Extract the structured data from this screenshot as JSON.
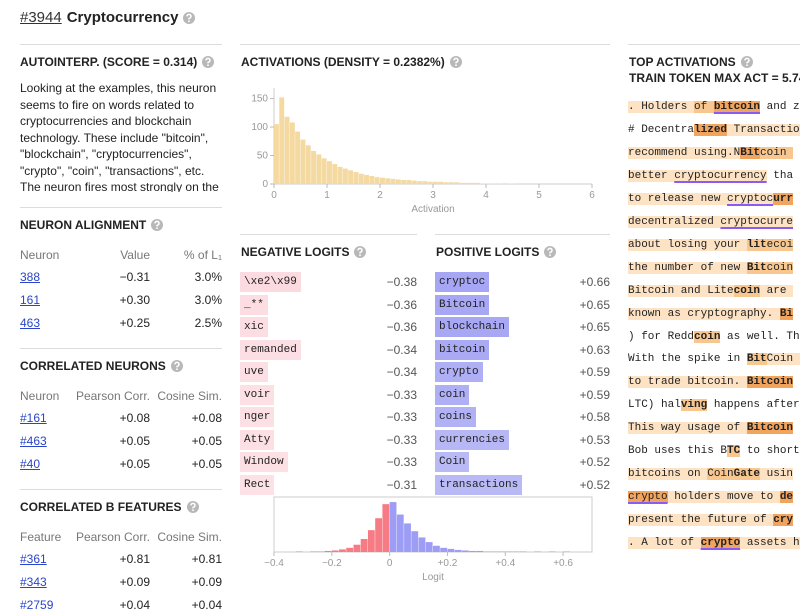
{
  "header": {
    "id": "#3944",
    "title": "Cryptocurrency"
  },
  "autointerp": {
    "title": "AUTOINTERP. (SCORE = 0.314)",
    "text": "Looking at the examples, this neuron seems to fire on words related to cryptocurrencies and blockchain technology. These include \"bitcoin\", \"blockchain\", \"cryptocurrencies\", \"crypto\", \"coin\", \"transactions\", etc. The neuron fires most strongly on the"
  },
  "neuron_alignment": {
    "title": "NEURON ALIGNMENT",
    "columns": [
      "Neuron",
      "Value",
      "% of L₁"
    ],
    "rows": [
      [
        "388",
        "−0.31",
        "3.0%"
      ],
      [
        "161",
        "+0.30",
        "3.0%"
      ],
      [
        "463",
        "+0.25",
        "2.5%"
      ]
    ]
  },
  "correlated_neurons": {
    "title": "CORRELATED NEURONS",
    "columns": [
      "Neuron",
      "Pearson Corr.",
      "Cosine Sim."
    ],
    "rows": [
      [
        "#161",
        "+0.08",
        "+0.08"
      ],
      [
        "#463",
        "+0.05",
        "+0.05"
      ],
      [
        "#40",
        "+0.05",
        "+0.05"
      ]
    ]
  },
  "correlated_b_features": {
    "title": "CORRELATED B FEATURES",
    "columns": [
      "Feature",
      "Pearson Corr.",
      "Cosine Sim."
    ],
    "rows": [
      [
        "#361",
        "+0.81",
        "+0.81"
      ],
      [
        "#343",
        "+0.09",
        "+0.09"
      ],
      [
        "#2759",
        "+0.04",
        "+0.04"
      ]
    ]
  },
  "activations": {
    "title": "ACTIVATIONS (DENSITY = 0.2382%)"
  },
  "negative_logits": {
    "title": "NEGATIVE LOGITS",
    "color": "#f2788c",
    "tokens": [
      "\\xe2\\x99",
      "_**",
      "xic",
      " remanded",
      "uve",
      " voir",
      "nger",
      " Atty",
      "Window",
      "Rect"
    ],
    "values": [
      -0.38,
      -0.36,
      -0.36,
      -0.34,
      -0.34,
      -0.33,
      -0.33,
      -0.33,
      -0.33,
      -0.31
    ],
    "value_labels": [
      "−0.38",
      "−0.36",
      "−0.36",
      "−0.34",
      "−0.34",
      "−0.33",
      "−0.33",
      "−0.33",
      "−0.33",
      "−0.31"
    ]
  },
  "positive_logits": {
    "title": "POSITIVE LOGITS",
    "color": "#7878ee",
    "tokens": [
      " cryptoc",
      " Bitcoin",
      " blockchain",
      " bitcoin",
      " crypto",
      "coin",
      "coins",
      " currencies",
      " Coin",
      " transactions"
    ],
    "values": [
      0.66,
      0.65,
      0.65,
      0.63,
      0.59,
      0.59,
      0.58,
      0.53,
      0.52,
      0.52
    ],
    "value_labels": [
      "+0.66",
      "+0.65",
      "+0.65",
      "+0.63",
      "+0.59",
      "+0.59",
      "+0.58",
      "+0.53",
      "+0.52",
      "+0.52"
    ]
  },
  "top_activations": {
    "title": "TOP ACTIVATIONS",
    "subtitle": "TRAIN TOKEN MAX ACT = 5.74",
    "highlight_colors": [
      "#ffffff",
      "#fde3c4",
      "#f8c790",
      "#f1a45e"
    ],
    "underline_color": "#8a5cf5",
    "lines": [
      [
        {
          "text": ". Holders ",
          "level": 1
        },
        {
          "text": "of ",
          "level": 2
        },
        {
          "text": "bitcoin",
          "level": 3,
          "bold": true,
          "underline": true
        },
        {
          "text": " and z",
          "level": 0
        }
      ],
      [
        {
          "text": "# Decentra",
          "level": 0
        },
        {
          "text": "lized",
          "level": 3,
          "bold": true
        },
        {
          "text": " Transactio",
          "level": 1
        }
      ],
      [
        {
          "text": "recommend using.N",
          "level": 1
        },
        {
          "text": "Bit",
          "level": 3,
          "bold": true
        },
        {
          "text": "coin ",
          "level": 2
        }
      ],
      [
        {
          "text": "better ",
          "level": 1
        },
        {
          "text": "cryptocurrency",
          "level": 1,
          "underline": true
        },
        {
          "text": " tha",
          "level": 0
        }
      ],
      [
        {
          "text": "to release new ",
          "level": 1
        },
        {
          "text": "cryptoc",
          "level": 1,
          "underline": true
        },
        {
          "text": "urr",
          "level": 3,
          "bold": true
        }
      ],
      [
        {
          "text": "decentralized ",
          "level": 1
        },
        {
          "text": "cryptocurre",
          "level": 1,
          "underline": true
        }
      ],
      [
        {
          "text": "about losing your ",
          "level": 1
        },
        {
          "text": "lit",
          "level": 2,
          "bold": true
        },
        {
          "text": "ecoi",
          "level": 2
        }
      ],
      [
        {
          "text": "the number of new ",
          "level": 1
        },
        {
          "text": "Bit",
          "level": 2,
          "bold": true
        },
        {
          "text": "coin",
          "level": 2
        }
      ],
      [
        {
          "text": "Bitcoin and Lite",
          "level": 1
        },
        {
          "text": "coin",
          "level": 2,
          "bold": true
        },
        {
          "text": " are ",
          "level": 1
        }
      ],
      [
        {
          "text": "known as cryptography. ",
          "level": 1
        },
        {
          "text": "Bi",
          "level": 3,
          "bold": true
        }
      ],
      [
        {
          "text": ") for Redd",
          "level": 0
        },
        {
          "text": "coin",
          "level": 2,
          "bold": true
        },
        {
          "text": " as well. Th",
          "level": 0
        }
      ],
      [
        {
          "text": "With the spike in ",
          "level": 0
        },
        {
          "text": "Bit",
          "level": 2,
          "bold": true
        },
        {
          "text": "Coin ",
          "level": 1
        }
      ],
      [
        {
          "text": "to trade bitcoin. ",
          "level": 1
        },
        {
          "text": "Bitcoin",
          "level": 3,
          "bold": true
        }
      ],
      [
        {
          "text": "LTC) hal",
          "level": 0
        },
        {
          "text": "ving",
          "level": 2,
          "bold": true
        },
        {
          "text": " happens after",
          "level": 0
        }
      ],
      [
        {
          "text": "This way usage of ",
          "level": 1
        },
        {
          "text": "Bitcoin",
          "level": 3,
          "bold": true
        }
      ],
      [
        {
          "text": "Bob uses this B",
          "level": 0
        },
        {
          "text": "TC",
          "level": 2,
          "bold": true
        },
        {
          "text": " to short",
          "level": 0
        }
      ],
      [
        {
          "text": "bitcoins on ",
          "level": 1
        },
        {
          "text": "Coin",
          "level": 2
        },
        {
          "text": "Gate",
          "level": 2,
          "bold": true
        },
        {
          "text": " usin",
          "level": 1
        }
      ],
      [
        {
          "text": "crypto",
          "level": 3,
          "underline": true
        },
        {
          "text": " holders move to ",
          "level": 1
        },
        {
          "text": "de",
          "level": 3,
          "bold": true
        }
      ],
      [
        {
          "text": "present the future of ",
          "level": 1
        },
        {
          "text": "cry",
          "level": 3,
          "bold": true
        }
      ],
      [
        {
          "text": ". A lot of ",
          "level": 1
        },
        {
          "text": "crypto",
          "level": 3,
          "bold": true,
          "underline": true
        },
        {
          "text": " assets h",
          "level": 1
        }
      ]
    ]
  },
  "chart_data": [
    {
      "type": "histogram",
      "xlabel": "Activation",
      "color": "#f4d9a0",
      "bins": [
        0,
        0.1,
        0.2,
        0.3,
        0.4,
        0.5,
        0.6,
        0.7,
        0.8,
        0.9,
        1,
        1.1,
        1.2,
        1.3,
        1.4,
        1.5,
        1.6,
        1.7,
        1.8,
        1.9,
        2,
        2.1,
        2.2,
        2.3,
        2.4,
        2.5,
        2.6,
        2.7,
        2.8,
        2.9,
        3,
        3.1,
        3.2,
        3.3,
        3.4,
        3.5,
        3.6,
        3.7,
        3.8,
        3.9,
        4,
        4.1,
        4.2,
        4.3,
        4.4,
        4.5,
        4.6
      ],
      "counts": [
        105,
        152,
        118,
        108,
        92,
        78,
        68,
        58,
        52,
        45,
        40,
        35,
        30,
        27,
        24,
        21,
        18,
        16,
        14,
        12,
        11,
        10,
        9,
        8,
        7,
        7,
        6,
        5,
        5,
        4,
        4,
        4,
        3,
        3,
        3,
        2,
        2,
        2,
        2,
        1,
        1,
        1,
        1,
        0,
        1,
        1
      ],
      "xlim": [
        0,
        6
      ],
      "xticks": [
        0,
        1,
        2,
        3,
        4,
        5,
        6
      ],
      "ylim": [
        0,
        165
      ],
      "yticks": [
        0,
        50,
        100,
        150
      ]
    },
    {
      "type": "histogram",
      "xlabel": "Logit",
      "negative_color": "#f77b85",
      "positive_color": "#9d9df5",
      "bins": [
        -0.4,
        -0.375,
        -0.35,
        -0.325,
        -0.3,
        -0.275,
        -0.25,
        -0.225,
        -0.2,
        -0.175,
        -0.15,
        -0.125,
        -0.1,
        -0.075,
        -0.05,
        -0.025,
        0,
        0.025,
        0.05,
        0.075,
        0.1,
        0.125,
        0.15,
        0.175,
        0.2,
        0.225,
        0.25,
        0.275,
        0.3,
        0.325,
        0.35,
        0.375,
        0.4,
        0.425,
        0.45,
        0.475,
        0.5,
        0.525,
        0.55,
        0.575,
        0.6,
        0.625,
        0.65
      ],
      "counts": [
        0,
        0,
        0,
        1,
        0,
        1,
        1,
        2,
        3,
        5,
        8,
        14,
        25,
        42,
        65,
        92,
        96,
        72,
        55,
        40,
        28,
        19,
        12,
        8,
        6,
        4,
        3,
        2,
        2,
        1,
        1,
        1,
        1,
        1,
        1,
        0,
        1,
        0,
        1,
        0,
        1,
        0
      ],
      "xlim": [
        -0.4,
        0.7
      ],
      "ylim": [
        0,
        100
      ],
      "xticks": [
        {
          "value": -0.4,
          "label": "−0.4"
        },
        {
          "value": -0.2,
          "label": "−0.2"
        },
        0,
        {
          "value": 0.2,
          "label": "+0.2"
        },
        {
          "value": 0.4,
          "label": "+0.4"
        },
        {
          "value": 0.6,
          "label": "+0.6"
        }
      ]
    }
  ]
}
